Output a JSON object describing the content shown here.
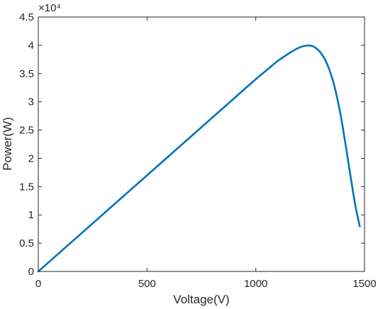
{
  "chart_data": {
    "type": "line",
    "title": "",
    "xlabel": "Voltage(V)",
    "ylabel": "Power(W)",
    "xlim": [
      0,
      1500
    ],
    "ylim": [
      0,
      45000
    ],
    "y_exponent_label": "×10⁴",
    "x_ticks": [
      {
        "value": 0,
        "label": "0"
      },
      {
        "value": 500,
        "label": "500"
      },
      {
        "value": 1000,
        "label": "1000"
      },
      {
        "value": 1500,
        "label": "1500"
      }
    ],
    "y_ticks": [
      {
        "value": 0,
        "label": "0"
      },
      {
        "value": 5000,
        "label": "0.5"
      },
      {
        "value": 10000,
        "label": "1"
      },
      {
        "value": 15000,
        "label": "1.5"
      },
      {
        "value": 20000,
        "label": "2"
      },
      {
        "value": 25000,
        "label": "2.5"
      },
      {
        "value": 30000,
        "label": "3"
      },
      {
        "value": 35000,
        "label": "3.5"
      },
      {
        "value": 40000,
        "label": "4"
      },
      {
        "value": 45000,
        "label": "4.5"
      }
    ],
    "grid": false,
    "line_color": "#0072BD",
    "series": [
      {
        "x": [
          0,
          100,
          200,
          300,
          400,
          500,
          600,
          700,
          800,
          900,
          1000,
          1050,
          1100,
          1150,
          1200,
          1230,
          1250,
          1270,
          1300,
          1330,
          1360,
          1390,
          1420,
          1440,
          1460,
          1478
        ],
        "values": [
          0,
          3400,
          6800,
          10200,
          13600,
          17000,
          20400,
          23800,
          27200,
          30600,
          34000,
          35600,
          37200,
          38500,
          39600,
          39920,
          39950,
          39700,
          38600,
          36500,
          33000,
          27700,
          20700,
          15800,
          11200,
          8000
        ]
      }
    ]
  }
}
